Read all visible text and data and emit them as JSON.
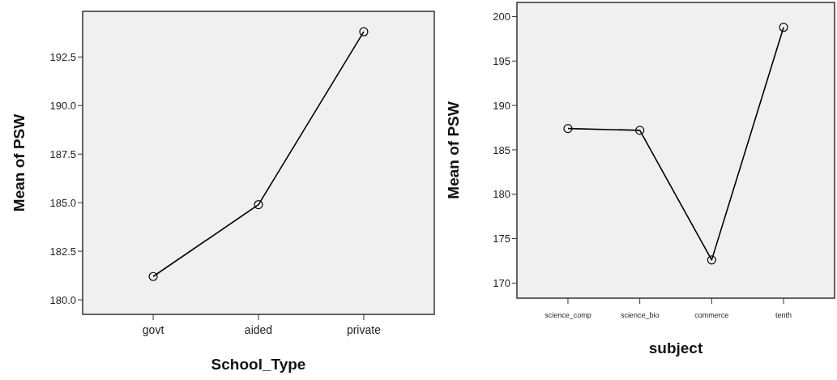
{
  "chart_data": [
    {
      "type": "line",
      "xlabel": "School_Type",
      "ylabel": "Mean of PSW",
      "categories": [
        "govt",
        "aided",
        "private"
      ],
      "series": [
        {
          "color": "#000000",
          "values": [
            181.2,
            184.9,
            193.8
          ]
        }
      ],
      "ylim": [
        179.25,
        194.85
      ],
      "yticks": [
        {
          "value": 180,
          "label": "180.0"
        },
        182.5,
        {
          "value": 185,
          "label": "185.0"
        },
        187.5,
        {
          "value": 190,
          "label": "190.0"
        },
        192.5
      ],
      "marker": "circle",
      "grid": false
    },
    {
      "type": "line",
      "xlabel": "subject",
      "ylabel": "Mean of PSW",
      "categories": [
        "science_comp",
        "science_bio",
        "commerce",
        "tenth"
      ],
      "series": [
        {
          "color": "#000000",
          "values": [
            187.4,
            187.2,
            172.6,
            198.8
          ]
        }
      ],
      "ylim": [
        168.3,
        201.6
      ],
      "yticks": [
        170,
        175,
        180,
        185,
        190,
        195,
        200
      ],
      "marker": "circle",
      "grid": false
    }
  ]
}
